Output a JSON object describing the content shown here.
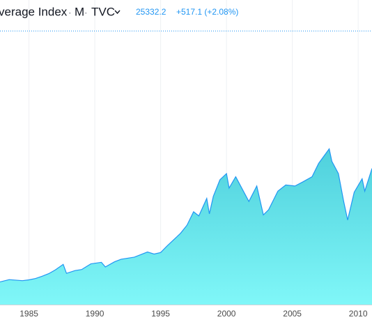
{
  "chart_data": {
    "type": "area",
    "title": "verage Index",
    "separator": "·",
    "interval": "M",
    "source": "TVC",
    "last_price": 25332.2,
    "change_label": "+517.1 (+2.08%)",
    "x": [
      1982.8,
      1983.5,
      1984.5,
      1985,
      1985.5,
      1986,
      1986.5,
      1987.0,
      1987.6,
      1987.85,
      1988.5,
      1989,
      1989.7,
      1990.5,
      1990.8,
      1991.5,
      1992,
      1993,
      1994,
      1994.5,
      1995,
      1995.5,
      1996,
      1996.5,
      1997,
      1997.5,
      1997.9,
      1998.5,
      1998.7,
      1999,
      1999.5,
      2000.0,
      2000.2,
      2000.7,
      2001.2,
      2001.7,
      2002.3,
      2002.8,
      2003.2,
      2003.9,
      2004.5,
      2005.2,
      2005.8,
      2006.5,
      2007.0,
      2007.8,
      2008.0,
      2008.5,
      2008.9,
      2009.2,
      2009.7,
      2010.3,
      2010.5,
      2011.05
    ],
    "values": [
      1000,
      1220,
      1120,
      1200,
      1330,
      1550,
      1800,
      2160,
      2700,
      1830,
      2100,
      2200,
      2750,
      2900,
      2450,
      2950,
      3200,
      3400,
      3900,
      3700,
      3850,
      4500,
      5100,
      5700,
      6500,
      7800,
      7400,
      9100,
      7600,
      9300,
      10900,
      11500,
      10100,
      11200,
      10000,
      8800,
      10300,
      7500,
      8000,
      9800,
      10400,
      10300,
      10700,
      11200,
      12500,
      13900,
      12700,
      11500,
      8800,
      7000,
      9700,
      11000,
      9800,
      12000
    ],
    "color": "#2196f3",
    "xlim": [
      1982.8,
      2011.05
    ],
    "xticks": [
      1985,
      1990,
      1995,
      2000,
      2005,
      2010
    ],
    "ylim": [
      -1200,
      28000
    ],
    "grid": true
  }
}
